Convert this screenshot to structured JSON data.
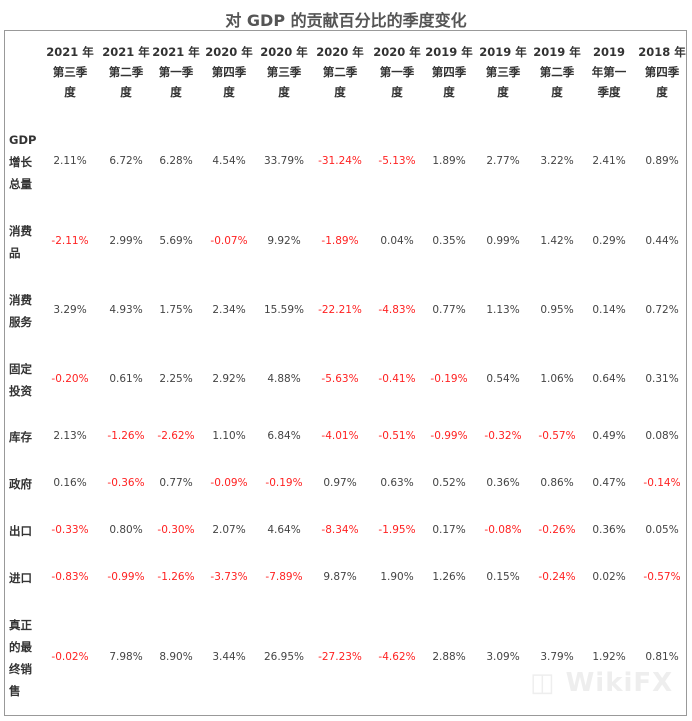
{
  "chart_data": {
    "type": "table",
    "title": "对 GDP 的贡献百分比的季度变化",
    "columns": [
      [
        "2021 年",
        "第三季",
        "度"
      ],
      [
        "2021 年",
        "第二季",
        "度"
      ],
      [
        "2021 年",
        "第一季",
        "度"
      ],
      [
        "2020 年",
        "第四季",
        "度"
      ],
      [
        "2020 年",
        "第三季",
        "度"
      ],
      [
        "2020 年",
        "第二季",
        "度"
      ],
      [
        "2020 年",
        "第一季",
        "度"
      ],
      [
        "2019 年",
        "第四季",
        "度"
      ],
      [
        "2019 年",
        "第三季",
        "度"
      ],
      [
        "2019 年",
        "第二季",
        "度"
      ],
      [
        "2019",
        "年第一",
        "季度"
      ],
      [
        "2018 年",
        "第四季",
        "度"
      ]
    ],
    "rows": [
      {
        "label": [
          "GDP",
          "增长",
          "总量"
        ],
        "values": [
          "2.11%",
          "6.72%",
          "6.28%",
          "4.54%",
          "33.79%",
          "-31.24%",
          "-5.13%",
          "1.89%",
          "2.77%",
          "3.22%",
          "2.41%",
          "0.89%"
        ]
      },
      {
        "label": [
          "消费",
          "品"
        ],
        "values": [
          "-2.11%",
          "2.99%",
          "5.69%",
          "-0.07%",
          "9.92%",
          "-1.89%",
          "0.04%",
          "0.35%",
          "0.99%",
          "1.42%",
          "0.29%",
          "0.44%"
        ]
      },
      {
        "label": [
          "消费",
          "服务"
        ],
        "values": [
          "3.29%",
          "4.93%",
          "1.75%",
          "2.34%",
          "15.59%",
          "-22.21%",
          "-4.83%",
          "0.77%",
          "1.13%",
          "0.95%",
          "0.14%",
          "0.72%"
        ]
      },
      {
        "label": [
          "固定",
          "投资"
        ],
        "values": [
          "-0.20%",
          "0.61%",
          "2.25%",
          "2.92%",
          "4.88%",
          "-5.63%",
          "-0.41%",
          "-0.19%",
          "0.54%",
          "1.06%",
          "0.64%",
          "0.31%"
        ]
      },
      {
        "label": [
          "库存"
        ],
        "values": [
          "2.13%",
          "-1.26%",
          "-2.62%",
          "1.10%",
          "6.84%",
          "-4.01%",
          "-0.51%",
          "-0.99%",
          "-0.32%",
          "-0.57%",
          "0.49%",
          "0.08%"
        ]
      },
      {
        "label": [
          "政府"
        ],
        "values": [
          "0.16%",
          "-0.36%",
          "0.77%",
          "-0.09%",
          "-0.19%",
          "0.97%",
          "0.63%",
          "0.52%",
          "0.36%",
          "0.86%",
          "0.47%",
          "-0.14%"
        ]
      },
      {
        "label": [
          "出口"
        ],
        "values": [
          "-0.33%",
          "0.80%",
          "-0.30%",
          "2.07%",
          "4.64%",
          "-8.34%",
          "-1.95%",
          "0.17%",
          "-0.08%",
          "-0.26%",
          "0.36%",
          "0.05%"
        ]
      },
      {
        "label": [
          "进口"
        ],
        "values": [
          "-0.83%",
          "-0.99%",
          "-1.26%",
          "-3.73%",
          "-7.89%",
          "9.87%",
          "1.90%",
          "1.26%",
          "0.15%",
          "-0.24%",
          "0.02%",
          "-0.57%"
        ]
      },
      {
        "label": [
          "真正",
          "的最",
          "终销",
          "售"
        ],
        "values": [
          "-0.02%",
          "7.98%",
          "8.90%",
          "3.44%",
          "26.95%",
          "-27.23%",
          "-4.62%",
          "2.88%",
          "3.09%",
          "3.79%",
          "1.92%",
          "0.81%"
        ]
      }
    ],
    "colors": {
      "negative": "#ff2222",
      "positive": "#444444"
    }
  },
  "watermark": "WikiFX"
}
